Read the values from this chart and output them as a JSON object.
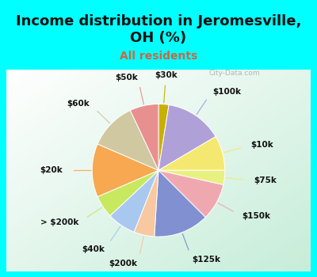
{
  "title": "Income distribution in Jeromesville,\nOH (%)",
  "subtitle": "All residents",
  "slices": [
    {
      "label": "$30k",
      "value": 2.5,
      "color": "#c8b000"
    },
    {
      "label": "$100k",
      "value": 14.0,
      "color": "#b0a0d8"
    },
    {
      "label": "$10k",
      "value": 8.5,
      "color": "#f5e870"
    },
    {
      "label": "$75k",
      "value": 3.5,
      "color": "#e8f080"
    },
    {
      "label": "$150k",
      "value": 9.0,
      "color": "#f0a8b0"
    },
    {
      "label": "$125k",
      "value": 13.5,
      "color": "#8090d0"
    },
    {
      "label": "$200k",
      "value": 5.0,
      "color": "#f8c8a0"
    },
    {
      "label": "$40k",
      "value": 7.0,
      "color": "#a8c8f0"
    },
    {
      "label": "> $200k",
      "value": 5.5,
      "color": "#c8e860"
    },
    {
      "label": "$20k",
      "value": 13.0,
      "color": "#f8a850"
    },
    {
      "label": "$60k",
      "value": 11.5,
      "color": "#d0c8a0"
    },
    {
      "label": "$50k",
      "value": 7.0,
      "color": "#e89090"
    }
  ],
  "title_fontsize": 13,
  "subtitle_fontsize": 10,
  "label_fontsize": 7.5,
  "cyan_color": "#00FFFF",
  "title_color": "#111111",
  "subtitle_color": "#cc6644",
  "watermark_color": "#aaaaaa"
}
